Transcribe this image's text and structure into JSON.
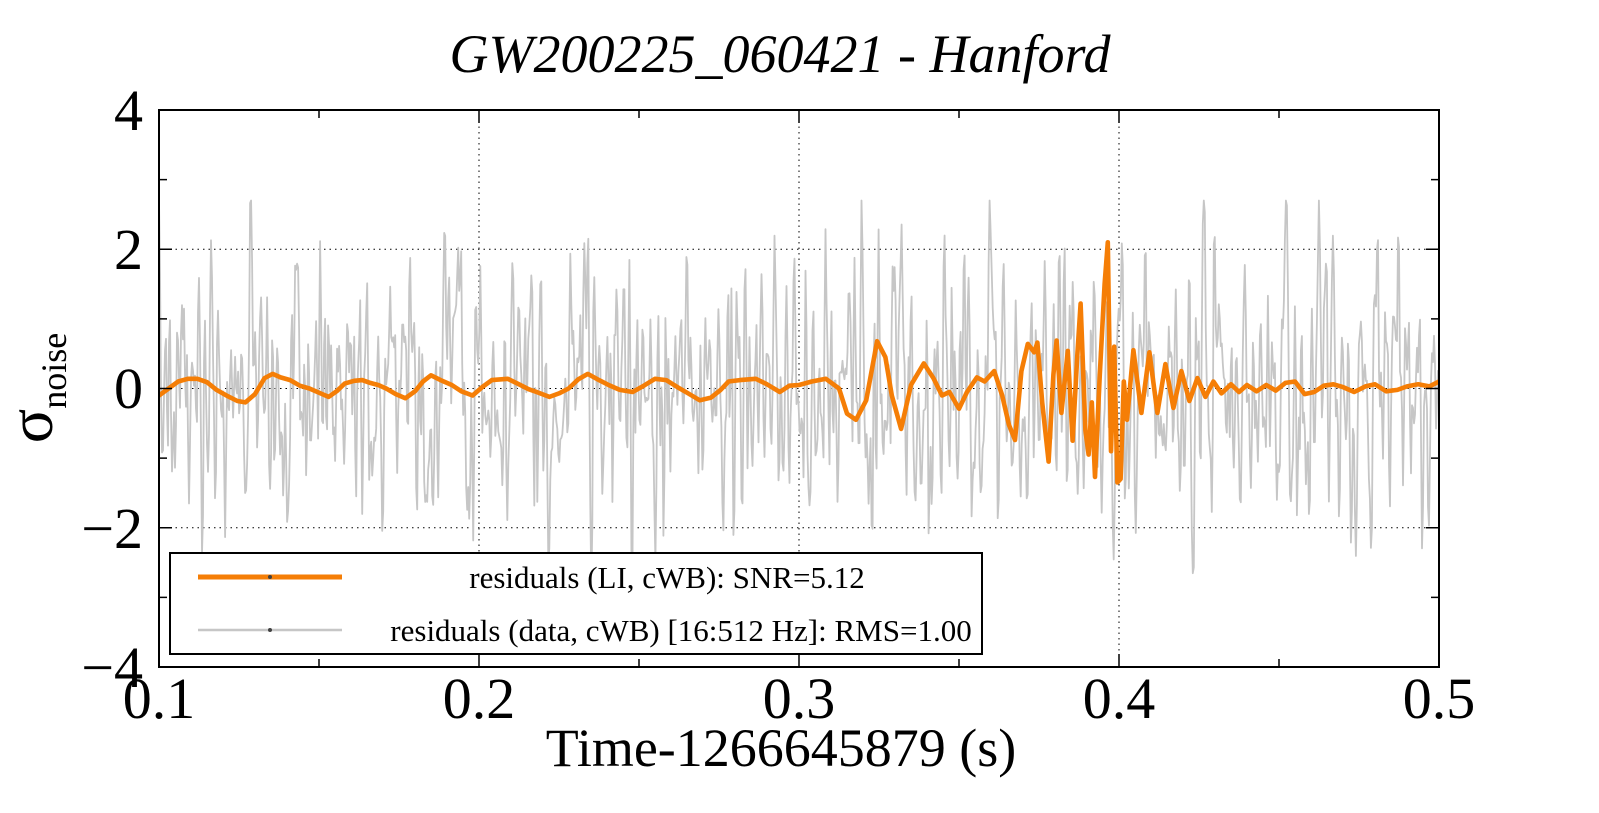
{
  "window": {
    "background": "#ffffff"
  },
  "chart_data": {
    "type": "line",
    "title": "GW200225_060421 - Hanford",
    "xlabel": "Time-1266645879 (s)",
    "ylabel": {
      "base": "σ",
      "sub": "noise"
    },
    "xlim": [
      0.1,
      0.5
    ],
    "ylim": [
      -4,
      4
    ],
    "xticks": [
      0.1,
      0.2,
      0.3,
      0.4,
      0.5
    ],
    "xtick_labels": [
      "0.1",
      "0.2",
      "0.3",
      "0.4",
      "0.5"
    ],
    "x_minor_step": 0.05,
    "yticks": [
      -4,
      -2,
      0,
      2,
      4
    ],
    "ytick_labels": [
      "−4",
      "−2",
      "0",
      "2",
      "4"
    ],
    "y_minor_step": 1,
    "grid": {
      "x_at": [
        0.2,
        0.3,
        0.4
      ],
      "y_at": [
        -2,
        0,
        2
      ],
      "style": "dotted",
      "color": "#000000"
    },
    "legend": {
      "position": "bottom-left",
      "border": true,
      "entries": [
        {
          "label": "residuals (LI, cWB): SNR=5.12",
          "color": "#f57e06",
          "line_width": 5
        },
        {
          "label": "residuals (data, cWB) [16:512 Hz]: RMS=1.00",
          "color": "#c6c6c6",
          "line_width": 2.5
        }
      ]
    },
    "series": [
      {
        "name": "residuals (LI, cWB): SNR=5.12",
        "color": "#f57e06",
        "width": 4.6,
        "points": [
          [
            0.1,
            -0.1
          ],
          [
            0.103,
            0.0
          ],
          [
            0.106,
            0.1
          ],
          [
            0.109,
            0.14
          ],
          [
            0.112,
            0.14
          ],
          [
            0.115,
            0.09
          ],
          [
            0.118,
            -0.02
          ],
          [
            0.1215,
            -0.11
          ],
          [
            0.1245,
            -0.18
          ],
          [
            0.127,
            -0.2
          ],
          [
            0.13,
            -0.08
          ],
          [
            0.133,
            0.15
          ],
          [
            0.1355,
            0.21
          ],
          [
            0.138,
            0.16
          ],
          [
            0.141,
            0.12
          ],
          [
            0.144,
            0.04
          ],
          [
            0.147,
            0.0
          ],
          [
            0.15,
            -0.06
          ],
          [
            0.153,
            -0.12
          ],
          [
            0.1555,
            -0.04
          ],
          [
            0.158,
            0.07
          ],
          [
            0.161,
            0.11
          ],
          [
            0.1635,
            0.12
          ],
          [
            0.166,
            0.08
          ],
          [
            0.1685,
            0.05
          ],
          [
            0.171,
            0.0
          ],
          [
            0.174,
            -0.08
          ],
          [
            0.177,
            -0.14
          ],
          [
            0.18,
            -0.04
          ],
          [
            0.1825,
            0.1
          ],
          [
            0.185,
            0.19
          ],
          [
            0.188,
            0.12
          ],
          [
            0.1915,
            0.05
          ],
          [
            0.1945,
            -0.04
          ],
          [
            0.198,
            -0.1
          ],
          [
            0.201,
            0.02
          ],
          [
            0.204,
            0.12
          ],
          [
            0.209,
            0.14
          ],
          [
            0.2125,
            0.06
          ],
          [
            0.2155,
            -0.01
          ],
          [
            0.218,
            -0.05
          ],
          [
            0.222,
            -0.12
          ],
          [
            0.225,
            -0.07
          ],
          [
            0.228,
            0.0
          ],
          [
            0.231,
            0.13
          ],
          [
            0.234,
            0.21
          ],
          [
            0.2375,
            0.12
          ],
          [
            0.2405,
            0.05
          ],
          [
            0.244,
            -0.02
          ],
          [
            0.248,
            -0.05
          ],
          [
            0.2515,
            0.04
          ],
          [
            0.255,
            0.14
          ],
          [
            0.2585,
            0.12
          ],
          [
            0.262,
            0.02
          ],
          [
            0.265,
            -0.06
          ],
          [
            0.269,
            -0.17
          ],
          [
            0.2725,
            -0.13
          ],
          [
            0.2755,
            -0.02
          ],
          [
            0.278,
            0.1
          ],
          [
            0.2815,
            0.12
          ],
          [
            0.2865,
            0.14
          ],
          [
            0.29,
            0.06
          ],
          [
            0.294,
            -0.05
          ],
          [
            0.297,
            0.04
          ],
          [
            0.3,
            0.05
          ],
          [
            0.304,
            0.1
          ],
          [
            0.3084,
            0.14
          ],
          [
            0.3125,
            0.0
          ],
          [
            0.315,
            -0.36
          ],
          [
            0.3178,
            -0.45
          ],
          [
            0.321,
            -0.17
          ],
          [
            0.3244,
            0.68
          ],
          [
            0.327,
            0.45
          ],
          [
            0.329,
            -0.1
          ],
          [
            0.3319,
            -0.58
          ],
          [
            0.335,
            0.05
          ],
          [
            0.339,
            0.36
          ],
          [
            0.342,
            0.15
          ],
          [
            0.3447,
            -0.1
          ],
          [
            0.347,
            -0.05
          ],
          [
            0.35,
            -0.29
          ],
          [
            0.3525,
            -0.05
          ],
          [
            0.3556,
            0.16
          ],
          [
            0.358,
            0.1
          ],
          [
            0.361,
            0.25
          ],
          [
            0.3635,
            -0.1
          ],
          [
            0.3656,
            -0.52
          ],
          [
            0.3675,
            -0.74
          ],
          [
            0.3695,
            0.25
          ],
          [
            0.3715,
            0.64
          ],
          [
            0.3735,
            0.52
          ],
          [
            0.3745,
            0.66
          ],
          [
            0.376,
            -0.2
          ],
          [
            0.378,
            -1.05
          ],
          [
            0.3795,
            0.2
          ],
          [
            0.3805,
            0.69
          ],
          [
            0.382,
            -0.35
          ],
          [
            0.384,
            0.54
          ],
          [
            0.3855,
            -0.75
          ],
          [
            0.387,
            0.5
          ],
          [
            0.388,
            1.22
          ],
          [
            0.3895,
            -0.6
          ],
          [
            0.3905,
            -0.95
          ],
          [
            0.3915,
            -0.2
          ],
          [
            0.3925,
            -1.27
          ],
          [
            0.394,
            0.2
          ],
          [
            0.3955,
            1.5
          ],
          [
            0.3965,
            2.1
          ],
          [
            0.3975,
            -0.9
          ],
          [
            0.3985,
            0.6
          ],
          [
            0.3995,
            -1.35
          ],
          [
            0.4005,
            -1.3
          ],
          [
            0.4015,
            0.1
          ],
          [
            0.4025,
            -0.45
          ],
          [
            0.4045,
            0.55
          ],
          [
            0.407,
            -0.35
          ],
          [
            0.4095,
            0.52
          ],
          [
            0.412,
            -0.35
          ],
          [
            0.4145,
            0.35
          ],
          [
            0.417,
            -0.28
          ],
          [
            0.4195,
            0.25
          ],
          [
            0.422,
            -0.18
          ],
          [
            0.4245,
            0.15
          ],
          [
            0.427,
            -0.12
          ],
          [
            0.4295,
            0.1
          ],
          [
            0.432,
            -0.07
          ],
          [
            0.435,
            0.06
          ],
          [
            0.4375,
            -0.05
          ],
          [
            0.44,
            0.05
          ],
          [
            0.443,
            -0.04
          ],
          [
            0.446,
            0.05
          ],
          [
            0.449,
            -0.03
          ],
          [
            0.452,
            0.08
          ],
          [
            0.455,
            0.1
          ],
          [
            0.458,
            -0.08
          ],
          [
            0.461,
            -0.05
          ],
          [
            0.464,
            0.04
          ],
          [
            0.467,
            0.06
          ],
          [
            0.47,
            0.02
          ],
          [
            0.4735,
            -0.05
          ],
          [
            0.477,
            0.03
          ],
          [
            0.48,
            0.06
          ],
          [
            0.4835,
            -0.04
          ],
          [
            0.487,
            -0.02
          ],
          [
            0.49,
            0.03
          ],
          [
            0.4935,
            0.06
          ],
          [
            0.497,
            0.03
          ],
          [
            0.5,
            0.1
          ]
        ]
      },
      {
        "name": "residuals (data, cWB) [16:512 Hz]: RMS=1.00",
        "color": "#c6c6c6",
        "width": 1.8,
        "synthesized_noise": {
          "seed": 7,
          "n_points": 1280,
          "rms": 1.0,
          "band_hz": [
            16,
            512
          ],
          "observed_range": [
            -2.9,
            2.7
          ],
          "detrend_window": 81
        }
      }
    ]
  }
}
